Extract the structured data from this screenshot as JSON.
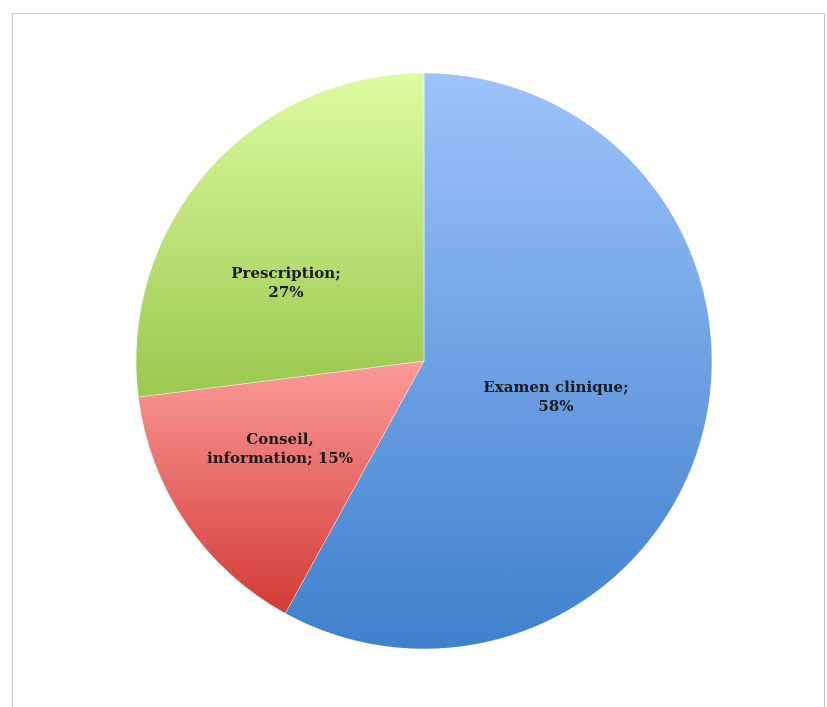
{
  "chart_data": {
    "type": "pie",
    "title": "",
    "slices": [
      {
        "name": "Examen clinique",
        "value": 58,
        "label_lines": [
          "Examen clinique;",
          "58%"
        ],
        "color_light": "#9dc3fb",
        "color_dark": "#3f80cc"
      },
      {
        "name": "Conseil, information",
        "value": 15,
        "label_lines": [
          "Conseil,",
          "information; 15%"
        ],
        "color_light": "#fb9b99",
        "color_dark": "#d33a35"
      },
      {
        "name": "Prescription",
        "value": 27,
        "label_lines": [
          "Prescription;",
          "27%"
        ],
        "color_light": "#ddfba0",
        "color_dark": "#9ac84f"
      }
    ],
    "start_angle_deg": 0,
    "direction": "clockwise",
    "legend": "none"
  }
}
